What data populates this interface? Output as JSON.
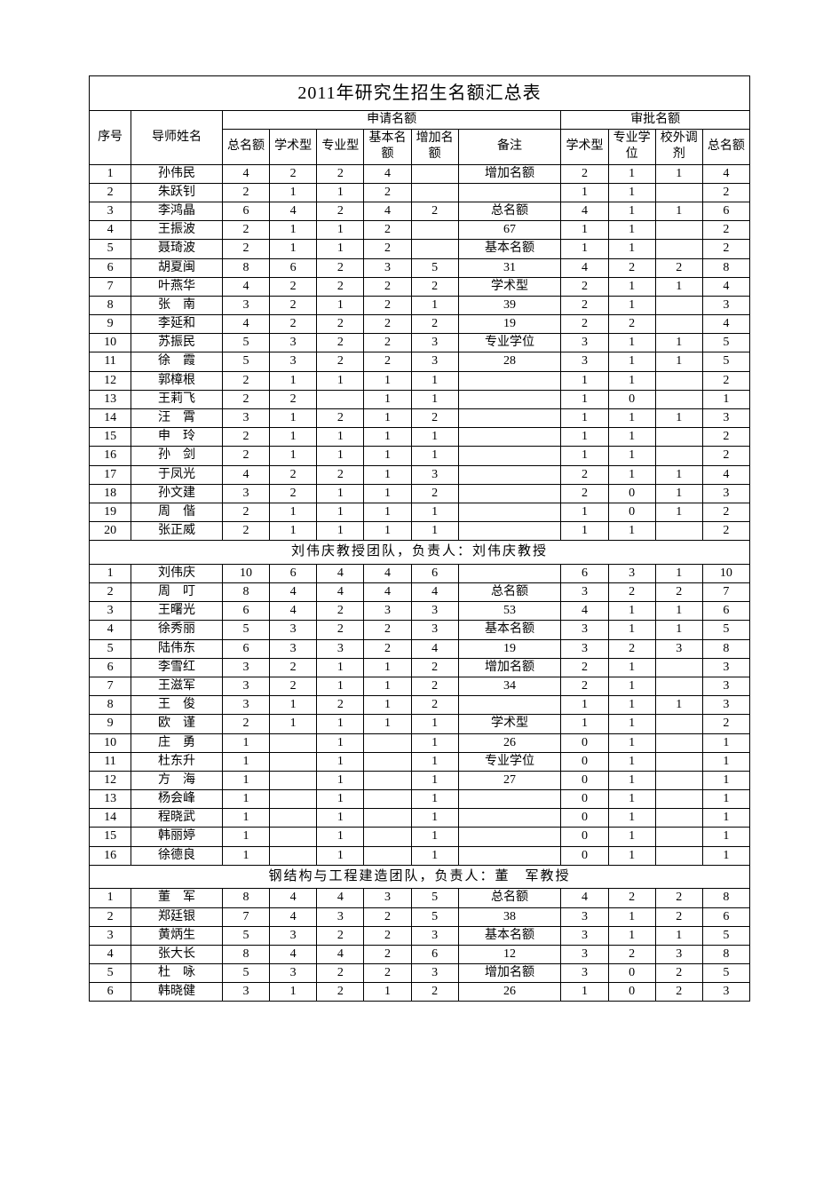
{
  "title": "2011年研究生招生名额汇总表",
  "header": {
    "seq": "序号",
    "advisor": "导师姓名",
    "apply_group": "申请名额",
    "approve_group": "审批名额",
    "total": "总名额",
    "academic": "学术型",
    "professional": "专业型",
    "base": "基本名额",
    "increase": "增加名额",
    "remark": "备注",
    "approve_academic": "学术型",
    "approve_prof": "专业学位",
    "approve_ext": "校外调剂",
    "approve_total": "总名额"
  },
  "sections": [
    {
      "heading": null,
      "rows": [
        {
          "seq": "1",
          "name": "孙伟民",
          "c": [
            "4",
            "2",
            "2",
            "4",
            "",
            "增加名额",
            "2",
            "1",
            "1",
            "4"
          ]
        },
        {
          "seq": "2",
          "name": "朱跃钊",
          "c": [
            "2",
            "1",
            "1",
            "2",
            "",
            "",
            "1",
            "1",
            "",
            "2"
          ]
        },
        {
          "seq": "3",
          "name": "李鸿晶",
          "c": [
            "6",
            "4",
            "2",
            "4",
            "2",
            "总名额",
            "4",
            "1",
            "1",
            "6"
          ]
        },
        {
          "seq": "4",
          "name": "王振波",
          "c": [
            "2",
            "1",
            "1",
            "2",
            "",
            "67",
            "1",
            "1",
            "",
            "2"
          ]
        },
        {
          "seq": "5",
          "name": "聂琦波",
          "c": [
            "2",
            "1",
            "1",
            "2",
            "",
            "基本名额",
            "1",
            "1",
            "",
            "2"
          ]
        },
        {
          "seq": "6",
          "name": "胡夏闽",
          "c": [
            "8",
            "6",
            "2",
            "3",
            "5",
            "31",
            "4",
            "2",
            "2",
            "8"
          ]
        },
        {
          "seq": "7",
          "name": "叶燕华",
          "c": [
            "4",
            "2",
            "2",
            "2",
            "2",
            "学术型",
            "2",
            "1",
            "1",
            "4"
          ]
        },
        {
          "seq": "8",
          "name": "张　南",
          "c": [
            "3",
            "2",
            "1",
            "2",
            "1",
            "39",
            "2",
            "1",
            "",
            "3"
          ]
        },
        {
          "seq": "9",
          "name": "李延和",
          "c": [
            "4",
            "2",
            "2",
            "2",
            "2",
            "19",
            "2",
            "2",
            "",
            "4"
          ]
        },
        {
          "seq": "10",
          "name": "苏振民",
          "c": [
            "5",
            "3",
            "2",
            "2",
            "3",
            "专业学位",
            "3",
            "1",
            "1",
            "5"
          ]
        },
        {
          "seq": "11",
          "name": "徐　霞",
          "c": [
            "5",
            "3",
            "2",
            "2",
            "3",
            "28",
            "3",
            "1",
            "1",
            "5"
          ]
        },
        {
          "seq": "12",
          "name": "郭樟根",
          "c": [
            "2",
            "1",
            "1",
            "1",
            "1",
            "",
            "1",
            "1",
            "",
            "2"
          ]
        },
        {
          "seq": "13",
          "name": "王莉飞",
          "c": [
            "2",
            "2",
            "",
            "1",
            "1",
            "",
            "1",
            "0",
            "",
            "1"
          ]
        },
        {
          "seq": "14",
          "name": "汪　霄",
          "c": [
            "3",
            "1",
            "2",
            "1",
            "2",
            "",
            "1",
            "1",
            "1",
            "3"
          ]
        },
        {
          "seq": "15",
          "name": "申　玲",
          "c": [
            "2",
            "1",
            "1",
            "1",
            "1",
            "",
            "1",
            "1",
            "",
            "2"
          ]
        },
        {
          "seq": "16",
          "name": "孙　剑",
          "c": [
            "2",
            "1",
            "1",
            "1",
            "1",
            "",
            "1",
            "1",
            "",
            "2"
          ]
        },
        {
          "seq": "17",
          "name": "于凤光",
          "c": [
            "4",
            "2",
            "2",
            "1",
            "3",
            "",
            "2",
            "1",
            "1",
            "4"
          ]
        },
        {
          "seq": "18",
          "name": "孙文建",
          "c": [
            "3",
            "2",
            "1",
            "1",
            "2",
            "",
            "2",
            "0",
            "1",
            "3"
          ]
        },
        {
          "seq": "19",
          "name": "周　偕",
          "c": [
            "2",
            "1",
            "1",
            "1",
            "1",
            "",
            "1",
            "0",
            "1",
            "2"
          ]
        },
        {
          "seq": "20",
          "name": "张正威",
          "c": [
            "2",
            "1",
            "1",
            "1",
            "1",
            "",
            "1",
            "1",
            "",
            "2"
          ]
        }
      ]
    },
    {
      "heading": "刘伟庆教授团队，负责人：刘伟庆教授",
      "rows": [
        {
          "seq": "1",
          "name": "刘伟庆",
          "c": [
            "10",
            "6",
            "4",
            "4",
            "6",
            "",
            "6",
            "3",
            "1",
            "10"
          ]
        },
        {
          "seq": "2",
          "name": "周　叮",
          "c": [
            "8",
            "4",
            "4",
            "4",
            "4",
            "总名额",
            "3",
            "2",
            "2",
            "7"
          ]
        },
        {
          "seq": "3",
          "name": "王曙光",
          "c": [
            "6",
            "4",
            "2",
            "3",
            "3",
            "53",
            "4",
            "1",
            "1",
            "6"
          ]
        },
        {
          "seq": "4",
          "name": "徐秀丽",
          "c": [
            "5",
            "3",
            "2",
            "2",
            "3",
            "基本名额",
            "3",
            "1",
            "1",
            "5"
          ]
        },
        {
          "seq": "5",
          "name": "陆伟东",
          "c": [
            "6",
            "3",
            "3",
            "2",
            "4",
            "19",
            "3",
            "2",
            "3",
            "8"
          ]
        },
        {
          "seq": "6",
          "name": "李雪红",
          "c": [
            "3",
            "2",
            "1",
            "1",
            "2",
            "增加名额",
            "2",
            "1",
            "",
            "3"
          ]
        },
        {
          "seq": "7",
          "name": "王滋军",
          "c": [
            "3",
            "2",
            "1",
            "1",
            "2",
            "34",
            "2",
            "1",
            "",
            "3"
          ]
        },
        {
          "seq": "8",
          "name": "王　俊",
          "c": [
            "3",
            "1",
            "2",
            "1",
            "2",
            "",
            "1",
            "1",
            "1",
            "3"
          ]
        },
        {
          "seq": "9",
          "name": "欧　谨",
          "c": [
            "2",
            "1",
            "1",
            "1",
            "1",
            "学术型",
            "1",
            "1",
            "",
            "2"
          ]
        },
        {
          "seq": "10",
          "name": "庄　勇",
          "c": [
            "1",
            "",
            "1",
            "",
            "1",
            "26",
            "0",
            "1",
            "",
            "1"
          ]
        },
        {
          "seq": "11",
          "name": "杜东升",
          "c": [
            "1",
            "",
            "1",
            "",
            "1",
            "专业学位",
            "0",
            "1",
            "",
            "1"
          ]
        },
        {
          "seq": "12",
          "name": "方　海",
          "c": [
            "1",
            "",
            "1",
            "",
            "1",
            "27",
            "0",
            "1",
            "",
            "1"
          ]
        },
        {
          "seq": "13",
          "name": "杨会峰",
          "c": [
            "1",
            "",
            "1",
            "",
            "1",
            "",
            "0",
            "1",
            "",
            "1"
          ]
        },
        {
          "seq": "14",
          "name": "程晓武",
          "c": [
            "1",
            "",
            "1",
            "",
            "1",
            "",
            "0",
            "1",
            "",
            "1"
          ]
        },
        {
          "seq": "15",
          "name": "韩丽婷",
          "c": [
            "1",
            "",
            "1",
            "",
            "1",
            "",
            "0",
            "1",
            "",
            "1"
          ]
        },
        {
          "seq": "16",
          "name": "徐德良",
          "c": [
            "1",
            "",
            "1",
            "",
            "1",
            "",
            "0",
            "1",
            "",
            "1"
          ]
        }
      ]
    },
    {
      "heading": "钢结构与工程建造团队，负责人：董　军教授",
      "rows": [
        {
          "seq": "1",
          "name": "董　军",
          "c": [
            "8",
            "4",
            "4",
            "3",
            "5",
            "总名额",
            "4",
            "2",
            "2",
            "8"
          ]
        },
        {
          "seq": "2",
          "name": "郑廷银",
          "c": [
            "7",
            "4",
            "3",
            "2",
            "5",
            "38",
            "3",
            "1",
            "2",
            "6"
          ]
        },
        {
          "seq": "3",
          "name": "黄炳生",
          "c": [
            "5",
            "3",
            "2",
            "2",
            "3",
            "基本名额",
            "3",
            "1",
            "1",
            "5"
          ]
        },
        {
          "seq": "4",
          "name": "张大长",
          "c": [
            "8",
            "4",
            "4",
            "2",
            "6",
            "12",
            "3",
            "2",
            "3",
            "8"
          ]
        },
        {
          "seq": "5",
          "name": "杜　咏",
          "c": [
            "5",
            "3",
            "2",
            "2",
            "3",
            "增加名额",
            "3",
            "0",
            "2",
            "5"
          ]
        },
        {
          "seq": "6",
          "name": "韩晓健",
          "c": [
            "3",
            "1",
            "2",
            "1",
            "2",
            "26",
            "1",
            "0",
            "2",
            "3"
          ]
        }
      ]
    }
  ]
}
